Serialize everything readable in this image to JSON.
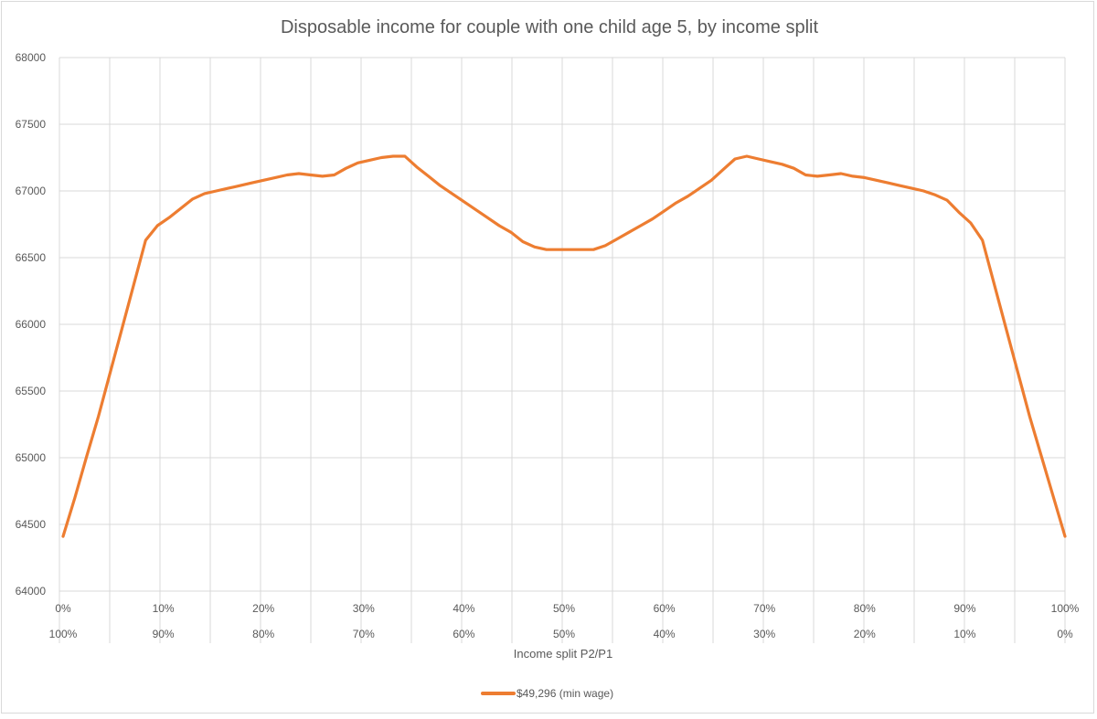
{
  "chart_data": {
    "type": "line",
    "title": "Disposable income for couple with one child age 5, by income split",
    "xlabel": "Income split P2/P1",
    "ylabel": "",
    "ylim": [
      64000,
      68000
    ],
    "yticks": [
      "64000",
      "64500",
      "65000",
      "65500",
      "66000",
      "66500",
      "67000",
      "67500",
      "68000"
    ],
    "xticks_p2": [
      "0%",
      "10%",
      "20%",
      "30%",
      "40%",
      "50%",
      "60%",
      "70%",
      "80%",
      "90%",
      "100%"
    ],
    "xticks_p1": [
      "100%",
      "90%",
      "80%",
      "70%",
      "60%",
      "50%",
      "40%",
      "30%",
      "20%",
      "10%",
      "0%"
    ],
    "grid": true,
    "legend_position": "bottom",
    "series": [
      {
        "name": "$49,296 (min wage)",
        "color": "#ED7D31",
        "points": [
          [
            0,
            64410
          ],
          [
            1,
            64700
          ],
          [
            2,
            65010
          ],
          [
            3,
            65310
          ],
          [
            4,
            65640
          ],
          [
            5,
            65970
          ],
          [
            6,
            66300
          ],
          [
            7,
            66630
          ],
          [
            8,
            66740
          ],
          [
            9,
            66800
          ],
          [
            10,
            66870
          ],
          [
            11,
            66940
          ],
          [
            12,
            66980
          ],
          [
            13,
            67000
          ],
          [
            14,
            67020
          ],
          [
            15,
            67040
          ],
          [
            16,
            67060
          ],
          [
            17,
            67080
          ],
          [
            18,
            67100
          ],
          [
            19,
            67120
          ],
          [
            20,
            67130
          ],
          [
            21,
            67120
          ],
          [
            22,
            67110
          ],
          [
            23,
            67120
          ],
          [
            24,
            67170
          ],
          [
            25,
            67210
          ],
          [
            26,
            67230
          ],
          [
            27,
            67250
          ],
          [
            28,
            67260
          ],
          [
            29,
            67260
          ],
          [
            30,
            67180
          ],
          [
            31,
            67110
          ],
          [
            32,
            67040
          ],
          [
            33,
            66980
          ],
          [
            34,
            66920
          ],
          [
            35,
            66860
          ],
          [
            36,
            66800
          ],
          [
            37,
            66740
          ],
          [
            38,
            66690
          ],
          [
            39,
            66620
          ],
          [
            40,
            66580
          ],
          [
            41,
            66560
          ],
          [
            42,
            66560
          ],
          [
            43,
            66560
          ],
          [
            44,
            66560
          ],
          [
            45,
            66560
          ],
          [
            46,
            66590
          ],
          [
            47,
            66640
          ],
          [
            48,
            66690
          ],
          [
            49,
            66740
          ],
          [
            50,
            66790
          ],
          [
            51,
            66850
          ],
          [
            52,
            66910
          ],
          [
            53,
            66960
          ],
          [
            54,
            67020
          ],
          [
            55,
            67080
          ],
          [
            56,
            67160
          ],
          [
            57,
            67240
          ],
          [
            58,
            67260
          ],
          [
            59,
            67240
          ],
          [
            60,
            67220
          ],
          [
            61,
            67200
          ],
          [
            62,
            67170
          ],
          [
            63,
            67120
          ],
          [
            64,
            67110
          ],
          [
            65,
            67120
          ],
          [
            66,
            67130
          ],
          [
            67,
            67110
          ],
          [
            68,
            67100
          ],
          [
            69,
            67080
          ],
          [
            70,
            67060
          ],
          [
            71,
            67040
          ],
          [
            72,
            67020
          ],
          [
            73,
            67000
          ],
          [
            74,
            66970
          ],
          [
            75,
            66930
          ],
          [
            76,
            66840
          ],
          [
            77,
            66760
          ],
          [
            78,
            66630
          ],
          [
            79,
            66300
          ],
          [
            80,
            65970
          ],
          [
            81,
            65640
          ],
          [
            82,
            65310
          ],
          [
            83,
            65010
          ],
          [
            84,
            64710
          ],
          [
            85,
            64410
          ]
        ]
      }
    ]
  }
}
